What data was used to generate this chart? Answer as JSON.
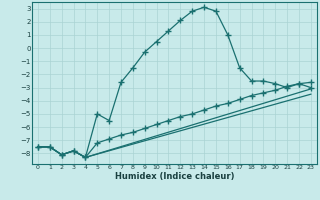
{
  "xlabel": "Humidex (Indice chaleur)",
  "background_color": "#c8eaea",
  "grid_color": "#aad4d4",
  "line_color": "#1a7070",
  "ylim": [
    -8.8,
    3.5
  ],
  "xlim": [
    -0.5,
    23.5
  ],
  "yticks": [
    3,
    2,
    1,
    0,
    -1,
    -2,
    -3,
    -4,
    -5,
    -6,
    -7,
    -8
  ],
  "xticks": [
    0,
    1,
    2,
    3,
    4,
    5,
    6,
    7,
    8,
    9,
    10,
    11,
    12,
    13,
    14,
    15,
    16,
    17,
    18,
    19,
    20,
    21,
    22,
    23
  ],
  "curve1_x": [
    0,
    1,
    2,
    3,
    4,
    5,
    6,
    7,
    8,
    9,
    10,
    11,
    12,
    13,
    14,
    15,
    16,
    17,
    18,
    19,
    20,
    21,
    22,
    23
  ],
  "curve1_y": [
    -7.5,
    -7.5,
    -8.1,
    -7.8,
    -8.3,
    -5.0,
    -5.5,
    -2.6,
    -1.5,
    -0.3,
    0.5,
    1.3,
    2.1,
    2.8,
    3.1,
    2.8,
    1.0,
    -1.5,
    -2.5,
    -2.5,
    -2.7,
    -3.0,
    -2.7,
    -3.0
  ],
  "curve2_x": [
    0,
    1,
    2,
    3,
    4,
    5,
    6,
    7,
    8,
    9,
    10,
    11,
    12,
    13,
    14,
    15,
    16,
    17,
    18,
    19,
    20,
    21,
    22,
    23
  ],
  "curve2_y": [
    -7.5,
    -7.5,
    -8.1,
    -7.8,
    -8.3,
    -7.2,
    -6.9,
    -6.6,
    -6.4,
    -6.1,
    -5.8,
    -5.5,
    -5.2,
    -5.0,
    -4.7,
    -4.4,
    -4.2,
    -3.9,
    -3.6,
    -3.4,
    -3.2,
    -2.9,
    -2.7,
    -2.6
  ],
  "curve3_x": [
    0,
    1,
    2,
    3,
    4,
    23
  ],
  "curve3_y": [
    -7.5,
    -7.5,
    -8.1,
    -7.8,
    -8.3,
    -3.1
  ],
  "curve4_x": [
    0,
    1,
    2,
    3,
    4,
    23
  ],
  "curve4_y": [
    -7.5,
    -7.5,
    -8.1,
    -7.8,
    -8.3,
    -3.5
  ]
}
